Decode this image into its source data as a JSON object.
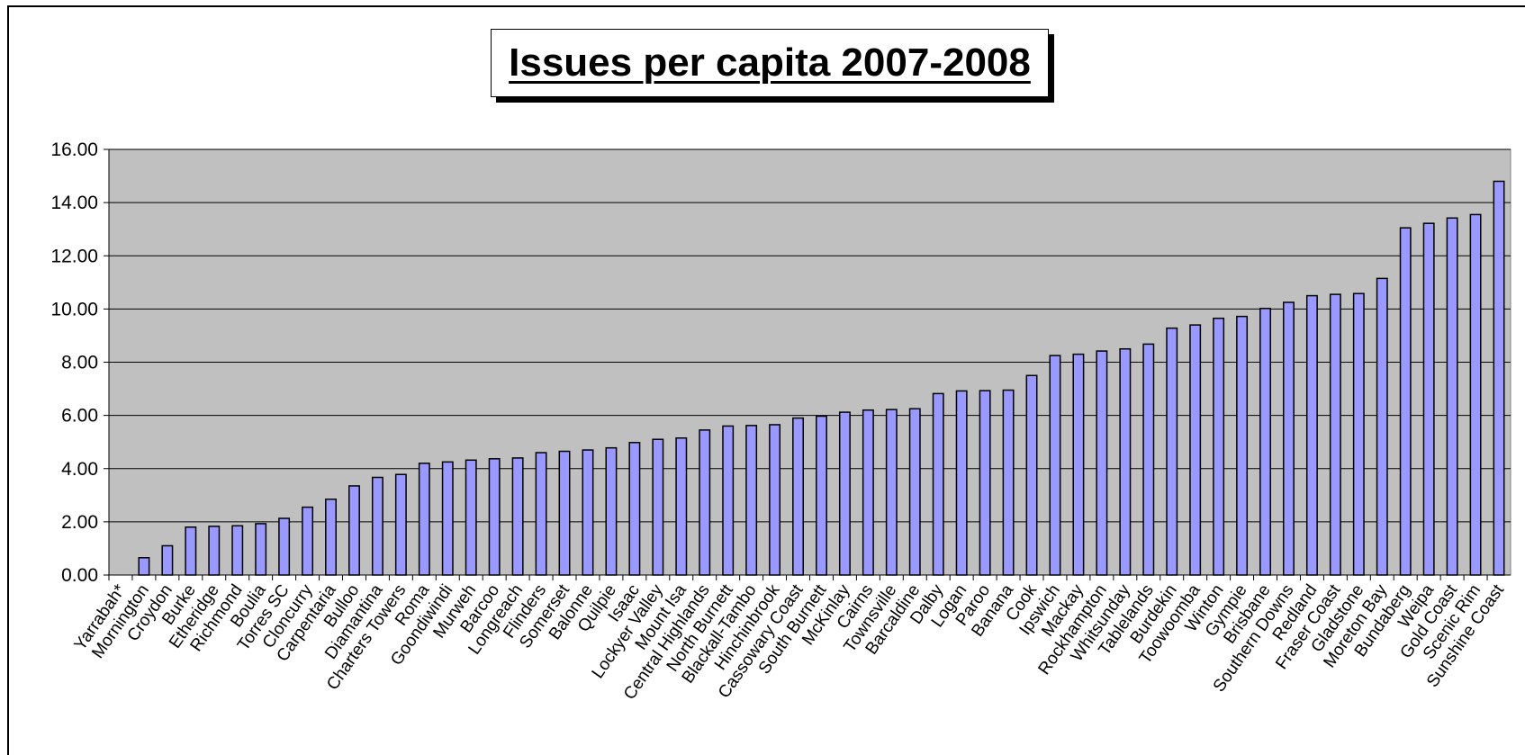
{
  "chart_data": {
    "type": "bar",
    "title": "Issues per capita 2007-2008",
    "xlabel": "",
    "ylabel": "",
    "ylim": [
      0,
      16
    ],
    "yticks": [
      "0.00",
      "2.00",
      "4.00",
      "6.00",
      "8.00",
      "10.00",
      "12.00",
      "14.00",
      "16.00"
    ],
    "grid": true,
    "legend": "none",
    "colors": {
      "plot_bg": "#c0c0c0",
      "bar_fill": "#9999ff",
      "bar_stroke": "#000000",
      "grid": "#000000"
    },
    "categories": [
      "Yarrabah*",
      "Mornington",
      "Croydon",
      "Burke",
      "Etheridge",
      "Richmond",
      "Boulia",
      "Torres SC",
      "Cloncurry",
      "Carpentaria",
      "Bulloo",
      "Diamantina",
      "Charters Towers",
      "Roma",
      "Goondiwindi",
      "Murweh",
      "Barcoo",
      "Longreach",
      "Flinders",
      "Somerset",
      "Balonne",
      "Quilpie",
      "Isaac",
      "Lockyer Valley",
      "Mount Isa",
      "Central Highlands",
      "North Burnett",
      "Blackall-Tambo",
      "Hinchinbrook",
      "Cassowary Coast",
      "South Burnett",
      "McKinlay",
      "Cairns",
      "Townsville",
      "Barcaldine",
      "Dalby",
      "Logan",
      "Paroo",
      "Banana",
      "Cook",
      "Ipswich",
      "Mackay",
      "Rockhampton",
      "Whitsunday",
      "Tablelands",
      "Burdekin",
      "Toowoomba",
      "Winton",
      "Gympie",
      "Brisbane",
      "Southern Downs",
      "Redland",
      "Fraser Coast",
      "Gladstone",
      "Moreton Bay",
      "Bundaberg",
      "Weipa",
      "Gold Coast",
      "Scenic Rim",
      "Sunshine Coast"
    ],
    "values": [
      0,
      0.65,
      1.1,
      1.8,
      1.83,
      1.85,
      1.93,
      2.13,
      2.55,
      2.85,
      3.35,
      3.67,
      3.78,
      4.2,
      4.25,
      4.32,
      4.37,
      4.4,
      4.6,
      4.65,
      4.7,
      4.78,
      4.98,
      5.1,
      5.15,
      5.45,
      5.6,
      5.62,
      5.65,
      5.9,
      5.97,
      6.12,
      6.2,
      6.22,
      6.25,
      6.82,
      6.92,
      6.93,
      6.95,
      7.5,
      8.25,
      8.3,
      8.42,
      8.5,
      8.68,
      9.28,
      9.4,
      9.65,
      9.72,
      10.02,
      10.25,
      10.5,
      10.55,
      10.58,
      11.15,
      13.05,
      13.22,
      13.42,
      13.55,
      14.8
    ]
  }
}
